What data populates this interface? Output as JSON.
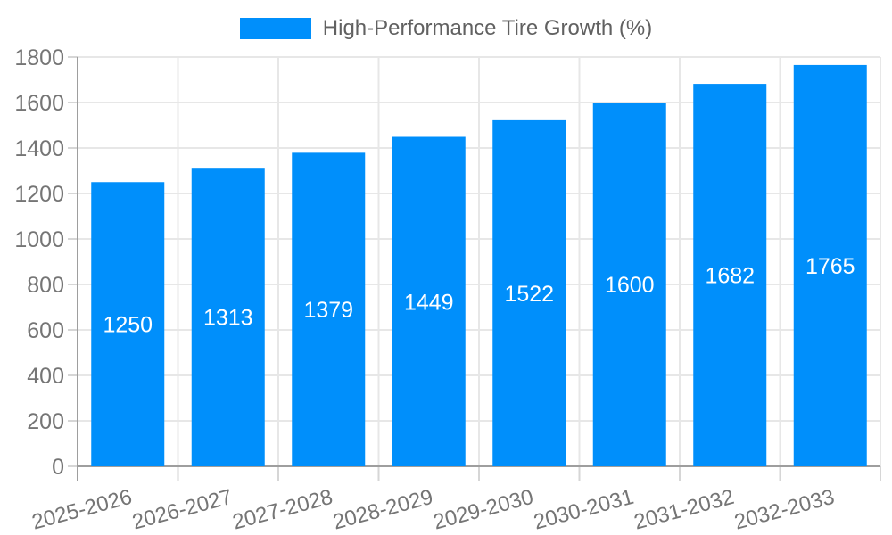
{
  "chart_data": {
    "type": "bar",
    "title": "High-Performance Tire Growth (%)",
    "series": [
      {
        "name": "High-Performance Tire Growth (%)",
        "values": [
          1250,
          1313,
          1379,
          1449,
          1522,
          1600,
          1682,
          1765
        ]
      }
    ],
    "categories": [
      "2025-2026",
      "2026-2027",
      "2027-2028",
      "2028-2029",
      "2029-2030",
      "2030-2031",
      "2031-2032",
      "2032-2033"
    ],
    "bar_labels": [
      "1250",
      "1313",
      "1379",
      "1449",
      "1522",
      "1600",
      "1682",
      "1765"
    ],
    "xlabel": "",
    "ylabel": "",
    "ylim": [
      0,
      1800
    ],
    "ytick_step": 200,
    "yticks": [
      "0",
      "200",
      "400",
      "600",
      "800",
      "1000",
      "1200",
      "1400",
      "1600",
      "1800"
    ],
    "grid": "horizontal and vertical, light gray",
    "legend_position": "top-center",
    "colors": {
      "bar": "#008FFB",
      "grid": "#e7e7e7",
      "axis_line": "#9e9e9e",
      "tick_stub": "#d6d6d6",
      "axis_label_text": "#757575",
      "legend_text": "#616161",
      "bar_label_text": "#ffffff",
      "background": "#ffffff"
    }
  }
}
